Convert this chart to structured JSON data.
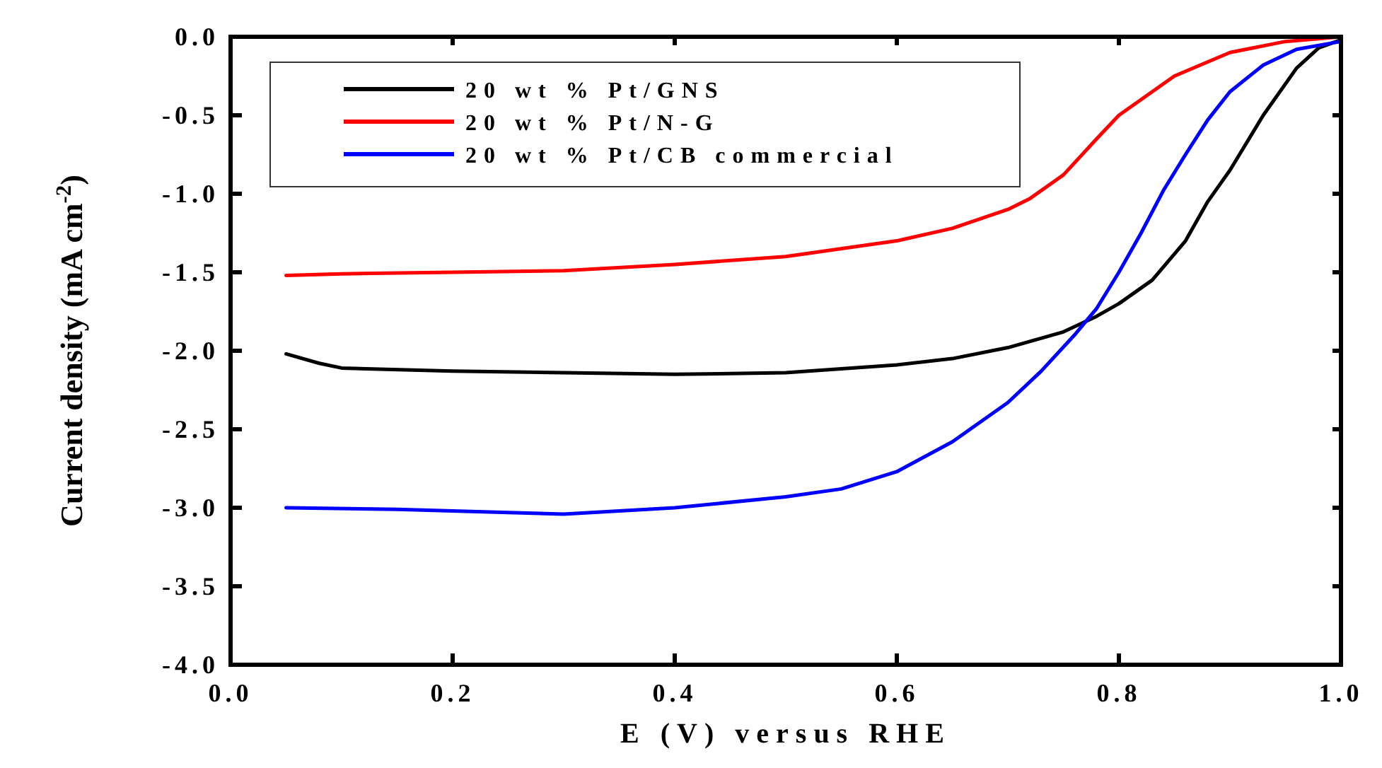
{
  "chart_data": {
    "type": "line",
    "xlabel": "E (V) versus RHE",
    "ylabel": "Current density (mA cm$^{-2}$)",
    "xlim": [
      0,
      1
    ],
    "ylim": [
      -4,
      0
    ],
    "xticks": [
      {
        "value": 0,
        "label": "0.0"
      },
      {
        "value": 0.2,
        "label": "0.2"
      },
      {
        "value": 0.4,
        "label": "0.4"
      },
      {
        "value": 0.6,
        "label": "0.6"
      },
      {
        "value": 0.8,
        "label": "0.8"
      },
      {
        "value": 1,
        "label": "1.0"
      }
    ],
    "yticks": [
      {
        "value": 0,
        "label": "0.0"
      },
      {
        "value": -0.5,
        "label": "-0.5"
      },
      {
        "value": -1,
        "label": "-1.0"
      },
      {
        "value": -1.5,
        "label": "-1.5"
      },
      {
        "value": -2,
        "label": "-2.0"
      },
      {
        "value": -2.5,
        "label": "-2.5"
      },
      {
        "value": -3,
        "label": "-3.0"
      },
      {
        "value": -3.5,
        "label": "-3.5"
      },
      {
        "value": -4,
        "label": "-4.0"
      }
    ],
    "grid": false,
    "legend": "top left",
    "marker": "none",
    "line_style": "solid",
    "series": [
      {
        "name": "20 wt % Pt/GNS",
        "color": "#000000",
        "x": [
          0.05,
          0.08,
          0.1,
          0.2,
          0.3,
          0.4,
          0.5,
          0.6,
          0.65,
          0.7,
          0.75,
          0.78,
          0.8,
          0.83,
          0.86,
          0.88,
          0.9,
          0.93,
          0.96,
          0.98,
          1.0
        ],
        "values": [
          -2.02,
          -2.08,
          -2.11,
          -2.13,
          -2.14,
          -2.15,
          -2.14,
          -2.09,
          -2.05,
          -1.98,
          -1.88,
          -1.78,
          -1.7,
          -1.55,
          -1.3,
          -1.05,
          -0.85,
          -0.5,
          -0.2,
          -0.07,
          -0.02
        ]
      },
      {
        "name": "20 wt % Pt/N-G",
        "color": "#ff0000",
        "x": [
          0.05,
          0.1,
          0.2,
          0.3,
          0.4,
          0.5,
          0.6,
          0.65,
          0.7,
          0.72,
          0.75,
          0.78,
          0.8,
          0.85,
          0.9,
          0.95,
          1.0
        ],
        "values": [
          -1.52,
          -1.51,
          -1.5,
          -1.49,
          -1.45,
          -1.4,
          -1.3,
          -1.22,
          -1.1,
          -1.03,
          -0.88,
          -0.65,
          -0.5,
          -0.25,
          -0.1,
          -0.03,
          0
        ]
      },
      {
        "name": "20 wt % Pt/CB commercial",
        "color": "#0000ff",
        "x": [
          0.05,
          0.15,
          0.25,
          0.3,
          0.4,
          0.5,
          0.55,
          0.6,
          0.65,
          0.7,
          0.73,
          0.76,
          0.78,
          0.8,
          0.82,
          0.84,
          0.86,
          0.88,
          0.9,
          0.93,
          0.96,
          1.0
        ],
        "values": [
          -3.0,
          -3.01,
          -3.03,
          -3.04,
          -3.0,
          -2.93,
          -2.88,
          -2.77,
          -2.58,
          -2.33,
          -2.13,
          -1.9,
          -1.73,
          -1.5,
          -1.25,
          -0.98,
          -0.75,
          -0.53,
          -0.35,
          -0.18,
          -0.08,
          -0.03
        ]
      }
    ]
  }
}
